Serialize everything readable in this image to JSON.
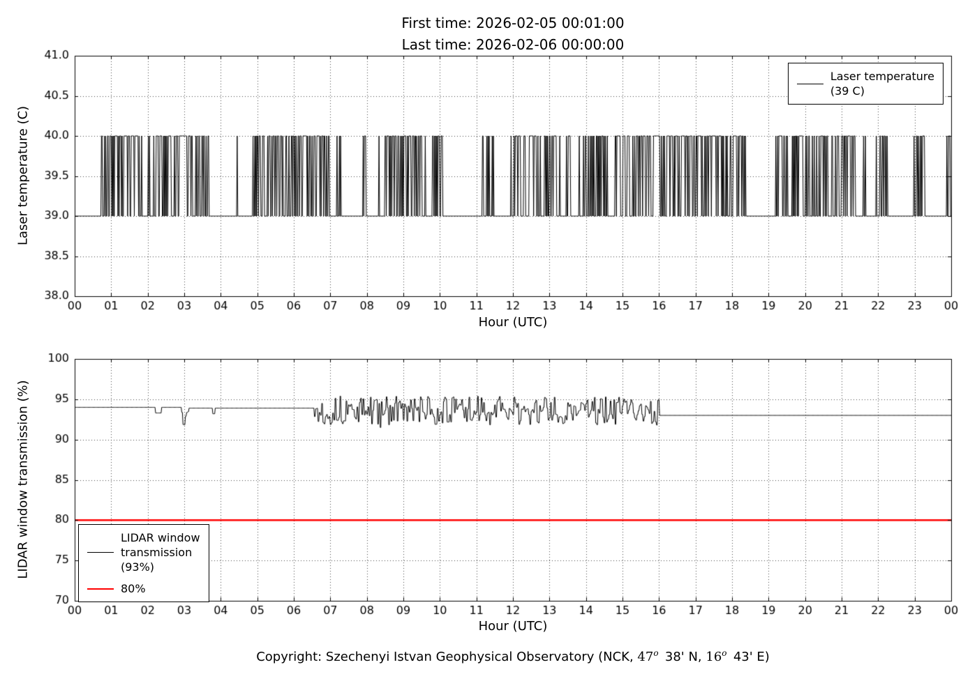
{
  "page": {
    "footer": {
      "part1": "Copyright: Szechenyi Istvan Geophysical Observatory (NCK, ",
      "lat_deg": "47",
      "deg_sup1": "o",
      "part2": "  38' N, ",
      "lon_deg": "16",
      "deg_sup2": "o",
      "part3": "  43' E)"
    }
  },
  "chart_data": [
    {
      "type": "line",
      "name": "laser-temperature-chart",
      "title_lines": [
        "First time: 2026-02-05 00:01:00",
        "Last time: 2026-02-06 00:00:00"
      ],
      "xlabel": "Hour (UTC)",
      "ylabel": "Laser temperature (C)",
      "xlim": [
        0,
        24
      ],
      "ylim": [
        38.0,
        41.0
      ],
      "xticks": [
        0,
        1,
        2,
        3,
        4,
        5,
        6,
        7,
        8,
        9,
        10,
        11,
        12,
        13,
        14,
        15,
        16,
        17,
        18,
        19,
        20,
        21,
        22,
        23,
        24
      ],
      "xtick_labels": [
        "00",
        "01",
        "02",
        "03",
        "04",
        "05",
        "06",
        "07",
        "08",
        "09",
        "10",
        "11",
        "12",
        "13",
        "14",
        "15",
        "16",
        "17",
        "18",
        "19",
        "20",
        "21",
        "22",
        "23",
        "00"
      ],
      "yticks": [
        38.0,
        38.5,
        39.0,
        39.5,
        40.0,
        40.5,
        41.0
      ],
      "ytick_labels": [
        "38.0",
        "38.5",
        "39.0",
        "39.5",
        "40.0",
        "40.5",
        "41.0"
      ],
      "grid": true,
      "legend": {
        "position": "top-right",
        "entries": [
          {
            "color": "#000000",
            "label_lines": [
              "Laser temperature",
              "(39 C)"
            ]
          }
        ]
      },
      "series": [
        {
          "name": "Laser temperature",
          "color": "#000000",
          "linewidth": 1,
          "generator": "bursts",
          "baseline": 39.0,
          "spike_value": 40.0,
          "seed": 7,
          "bursts": [
            [
              0.73,
              1.02,
              0.45
            ],
            [
              1.02,
              1.8,
              0.7
            ],
            [
              1.8,
              2.25,
              0.5
            ],
            [
              2.25,
              3.25,
              0.65
            ],
            [
              3.25,
              3.68,
              0.45
            ],
            [
              4.42,
              4.55,
              0.35
            ],
            [
              4.88,
              5.6,
              0.65
            ],
            [
              5.6,
              6.25,
              0.5
            ],
            [
              6.25,
              6.98,
              0.55
            ],
            [
              7.17,
              7.3,
              0.45
            ],
            [
              7.9,
              7.97,
              0.6
            ],
            [
              8.33,
              9.25,
              0.6
            ],
            [
              9.25,
              10.08,
              0.55
            ],
            [
              11.15,
              11.2,
              0.6
            ],
            [
              11.27,
              11.47,
              0.5
            ],
            [
              11.95,
              12.35,
              0.5
            ],
            [
              12.45,
              13.3,
              0.55
            ],
            [
              13.37,
              13.57,
              0.5
            ],
            [
              13.77,
              14.62,
              0.5
            ],
            [
              14.77,
              15.23,
              0.55
            ],
            [
              15.27,
              16.12,
              0.75
            ],
            [
              16.12,
              17.23,
              0.65
            ],
            [
              17.23,
              18.4,
              0.6
            ],
            [
              19.17,
              19.53,
              0.5
            ],
            [
              19.62,
              20.62,
              0.55
            ],
            [
              20.72,
              21.37,
              0.55
            ],
            [
              21.52,
              21.67,
              0.4
            ],
            [
              21.93,
              22.32,
              0.45
            ],
            [
              22.97,
              23.32,
              0.4
            ],
            [
              23.87,
              24.0,
              0.5
            ]
          ]
        }
      ]
    },
    {
      "type": "line",
      "name": "window-transmission-chart",
      "title_lines": [],
      "xlabel": "Hour (UTC)",
      "ylabel": "LIDAR window transmission (%)",
      "xlim": [
        0,
        24
      ],
      "ylim": [
        70,
        100
      ],
      "xticks": [
        0,
        1,
        2,
        3,
        4,
        5,
        6,
        7,
        8,
        9,
        10,
        11,
        12,
        13,
        14,
        15,
        16,
        17,
        18,
        19,
        20,
        21,
        22,
        23,
        24
      ],
      "xtick_labels": [
        "00",
        "01",
        "02",
        "03",
        "04",
        "05",
        "06",
        "07",
        "08",
        "09",
        "10",
        "11",
        "12",
        "13",
        "14",
        "15",
        "16",
        "17",
        "18",
        "19",
        "20",
        "21",
        "22",
        "23",
        "00"
      ],
      "yticks": [
        70,
        75,
        80,
        85,
        90,
        95,
        100
      ],
      "ytick_labels": [
        "70",
        "75",
        "80",
        "85",
        "90",
        "95",
        "100"
      ],
      "grid": true,
      "legend": {
        "position": "bottom-left",
        "entries": [
          {
            "color": "#000000",
            "label_lines": [
              "LIDAR window",
              "transmission",
              "(93%)"
            ]
          },
          {
            "color": "#ff0000",
            "label_lines": [
              "80%"
            ]
          }
        ]
      },
      "series": [
        {
          "name": "LIDAR window transmission",
          "color": "#000000",
          "linewidth": 1,
          "generator": "segments",
          "seed": 13,
          "segments": [
            [
              0.0,
              2.2,
              94.0,
              0
            ],
            [
              2.2,
              2.38,
              93.3,
              0
            ],
            [
              2.38,
              2.93,
              94.0,
              0
            ],
            [
              2.93,
              3.12,
              93.3,
              0.5
            ],
            [
              3.12,
              3.78,
              93.9,
              0
            ],
            [
              3.78,
              3.84,
              93.2,
              0
            ],
            [
              3.84,
              6.55,
              93.9,
              0
            ],
            [
              6.55,
              16.0,
              93.6,
              1.8
            ],
            [
              16.0,
              24.0,
              93.0,
              0
            ]
          ]
        },
        {
          "name": "80%",
          "color": "#ff0000",
          "linewidth": 2.5,
          "generator": "constant",
          "value": 80
        }
      ]
    }
  ]
}
